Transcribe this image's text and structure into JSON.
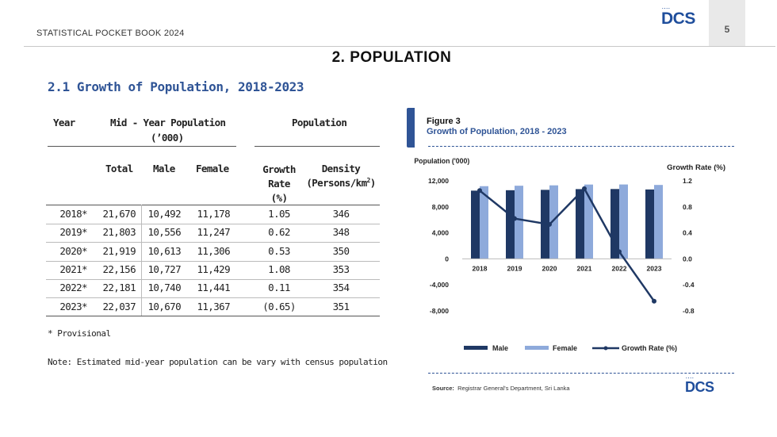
{
  "header": {
    "book_title": "STATISTICAL POCKET BOOK 2024",
    "logo_text": "DCS",
    "logo_dots": "....",
    "page_number": "5"
  },
  "section_title": "2.  POPULATION",
  "subsection_title": "2.1 Growth of Population, 2018-2023",
  "table": {
    "col_year": "Year",
    "group_midyear": "Mid - Year Population",
    "group_midyear_unit": "(’000)",
    "group_population": "Population",
    "col_total": "Total",
    "col_male": "Male",
    "col_female": "Female",
    "col_growth_line1": "Growth",
    "col_growth_line2": "Rate",
    "col_growth_line3": "(%)",
    "col_density_line1": "Density",
    "col_density_line2": "(Persons/km",
    "col_density_sup": "2",
    "col_density_close": ")",
    "rows": [
      {
        "year": "2018*",
        "total": "21,670",
        "male": "10,492",
        "female": "11,178",
        "growth": "1.05",
        "density": "346"
      },
      {
        "year": "2019*",
        "total": "21,803",
        "male": "10,556",
        "female": "11,247",
        "growth": "0.62",
        "density": "348"
      },
      {
        "year": "2020*",
        "total": "21,919",
        "male": "10,613",
        "female": "11,306",
        "growth": "0.53",
        "density": "350"
      },
      {
        "year": "2021*",
        "total": "22,156",
        "male": "10,727",
        "female": "11,429",
        "growth": "1.08",
        "density": "353"
      },
      {
        "year": "2022*",
        "total": "22,181",
        "male": "10,740",
        "female": "11,441",
        "growth": "0.11",
        "density": "354"
      },
      {
        "year": "2023*",
        "total": "22,037",
        "male": "10,670",
        "female": "11,367",
        "growth": "(0.65)",
        "density": "351"
      }
    ]
  },
  "footnote_provisional": "* Provisional",
  "footnote_note": "Note: Estimated mid-year population can be vary with census population",
  "figure": {
    "label": "Figure 3",
    "title": "Growth of Population, 2018 -  2023",
    "source_label": "Source:",
    "source_text": "Registrar General's Department, Sri Lanka",
    "logo_text": "DCS"
  },
  "chart_data": {
    "type": "bar",
    "title": "Growth of Population, 2018 -  2023",
    "categories": [
      "2018",
      "2019",
      "2020",
      "2021",
      "2022",
      "2023"
    ],
    "ylabel": "Population ('000)",
    "y2label": "Growth Rate (%)",
    "ylim": [
      -8000,
      12000
    ],
    "y_ticks": [
      "12,000",
      "8,000",
      "4,000",
      "0",
      "-4,000",
      "-8,000"
    ],
    "y_tick_values": [
      12000,
      8000,
      4000,
      0,
      -4000,
      -8000
    ],
    "y2lim": [
      -0.8,
      1.2
    ],
    "y2_ticks": [
      "1.2",
      "0.8",
      "0.4",
      "0.0",
      "-0.4",
      "-0.8"
    ],
    "y2_tick_values": [
      1.2,
      0.8,
      0.4,
      0.0,
      -0.4,
      -0.8
    ],
    "series": [
      {
        "name": "Male",
        "kind": "bar",
        "axis": "left",
        "color": "#1f3864",
        "values": [
          10492,
          10556,
          10613,
          10727,
          10740,
          10670
        ]
      },
      {
        "name": "Female",
        "kind": "bar",
        "axis": "left",
        "color": "#8eaadb",
        "values": [
          11178,
          11247,
          11306,
          11429,
          11441,
          11367
        ]
      },
      {
        "name": "Growth Rate (%)",
        "kind": "line",
        "axis": "right",
        "color": "#1f3864",
        "values": [
          1.05,
          0.62,
          0.53,
          1.08,
          0.11,
          -0.65
        ]
      }
    ],
    "legend_position": "bottom",
    "grid": false
  }
}
